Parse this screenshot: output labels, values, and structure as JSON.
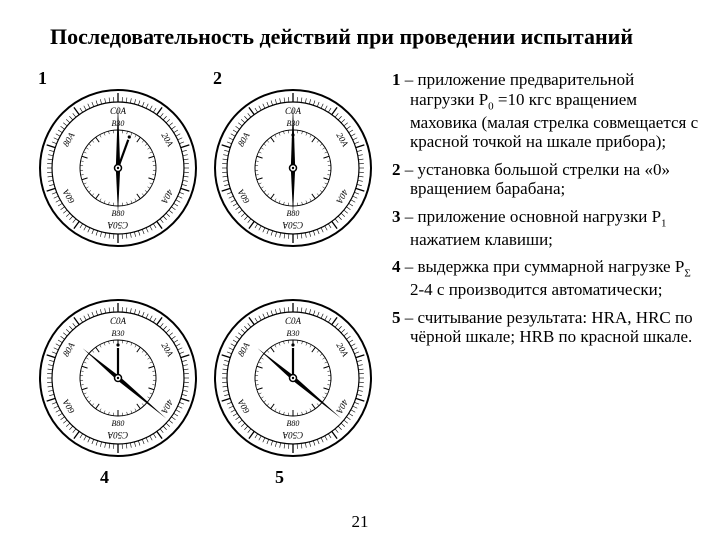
{
  "title": "Последовательность действий при проведении испытаний",
  "page_number": "21",
  "gauges": {
    "outer_labels": [
      "C0A",
      "20A",
      "40A",
      "C50A",
      "60A",
      "80A"
    ],
    "inner_labels": [
      "B30",
      "B80"
    ],
    "panels": [
      {
        "num": "1",
        "big_angle": -90,
        "small_angle": -70,
        "num_pos": "tl"
      },
      {
        "num": "2",
        "big_angle": -90,
        "small_angle": -90,
        "num_pos": "tl"
      },
      {
        "num": "4",
        "big_angle": 40,
        "small_angle": -90,
        "num_pos": "bl"
      },
      {
        "num": "5",
        "big_angle": 40,
        "small_angle": -90,
        "num_pos": "bl"
      }
    ],
    "colors": {
      "stroke": "#000000",
      "bg": "#ffffff",
      "needle": "#000000",
      "tick": "#000000"
    },
    "outer_r": 78,
    "ring_r": 66,
    "inner_ring_r": 38,
    "tick_len_major": 9,
    "tick_len_minor": 5,
    "font_outer": 9,
    "font_inner": 8
  },
  "steps": [
    {
      "num": "1",
      "text": " – приложение предварительной нагрузки P",
      "sub": "0",
      "tail": " =10 кгс вращением маховика (малая стрелка совмещается с красной точкой на шкале прибора);"
    },
    {
      "num": "2",
      "text": " – установка большой стрелки на «0» вращением барабана;",
      "sub": "",
      "tail": ""
    },
    {
      "num": "3",
      "text": " – приложение основной нагрузки P",
      "sub": "1",
      "tail": " нажатием клавиши;"
    },
    {
      "num": "4",
      "text": " – выдержка при суммарной нагрузке P",
      "sub": "Σ",
      "tail": " 2-4 с производится автоматически;"
    },
    {
      "num": "5",
      "text": " – считывание результата: HRA, HRC по чёрной шкале; HRB по красной шкале.",
      "sub": "",
      "tail": ""
    }
  ]
}
